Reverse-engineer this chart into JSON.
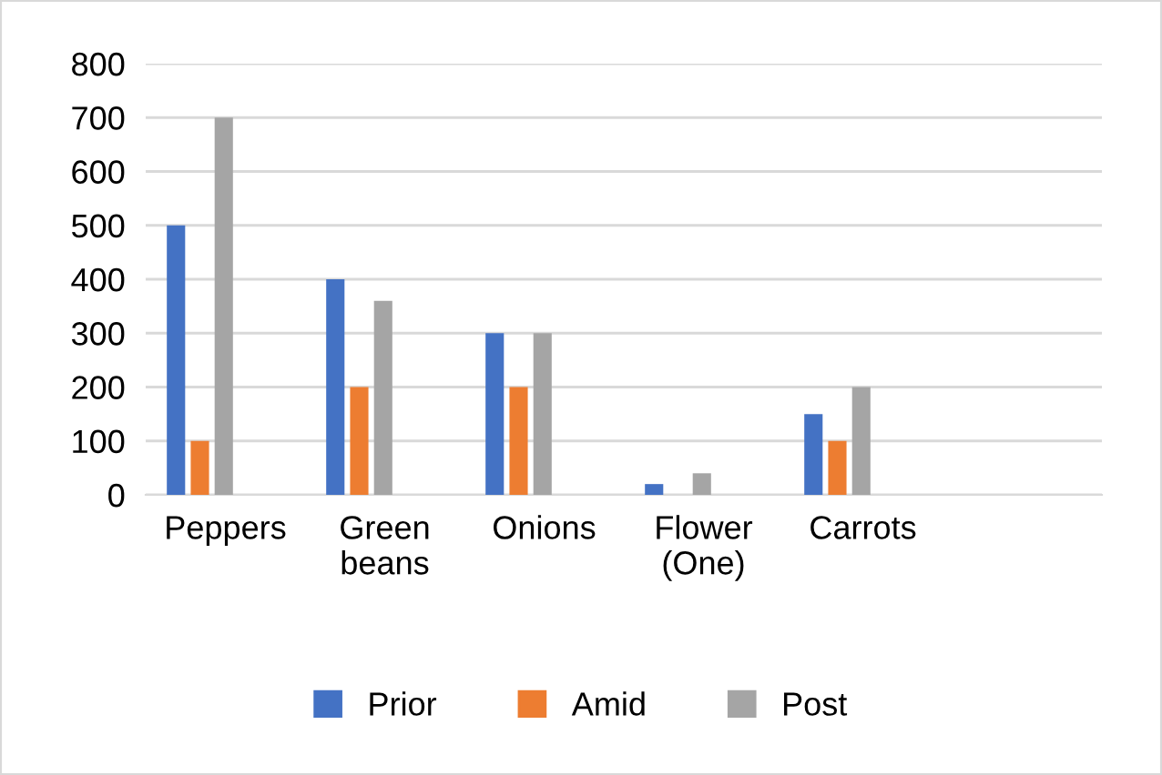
{
  "chart_data": {
    "type": "bar",
    "categories": [
      "Peppers",
      "Green\nbeans",
      "Onions",
      "Flower\n(One)",
      "Carrots",
      null
    ],
    "series": [
      {
        "name": "Prior",
        "color": "#4472c4",
        "values": [
          500,
          400,
          300,
          20,
          150,
          null
        ]
      },
      {
        "name": "Amid",
        "color": "#ed7d31",
        "values": [
          100,
          200,
          200,
          null,
          100,
          null
        ]
      },
      {
        "name": "Post",
        "color": "#a5a5a5",
        "values": [
          700,
          360,
          300,
          40,
          200,
          null
        ]
      }
    ],
    "ylim": [
      0,
      800
    ],
    "yticks": [
      0,
      100,
      200,
      300,
      400,
      500,
      600,
      700,
      800
    ],
    "grid": "y",
    "legend": "bottom"
  }
}
